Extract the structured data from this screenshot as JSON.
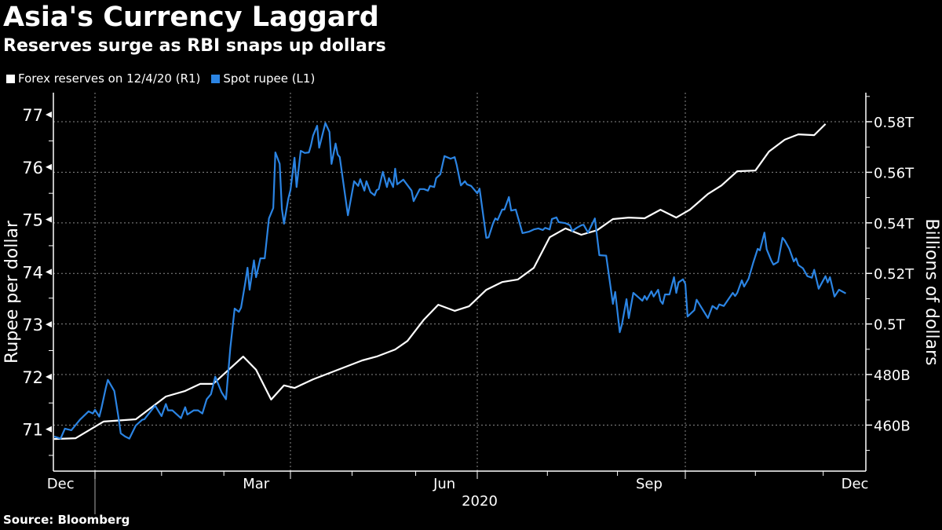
{
  "header": {
    "title": "Asia's Currency Laggard",
    "subtitle": "Reserves surge as RBI snaps up dollars"
  },
  "legend": [
    {
      "label": "Forex reserves on 12/4/20 (R1)",
      "color": "#ffffff"
    },
    {
      "label": "Spot rupee (L1)",
      "color": "#2b84e3"
    }
  ],
  "source": "Source: Bloomberg",
  "chart_data": {
    "type": "line",
    "title": "Asia's Currency Laggard",
    "subtitle": "Reserves surge as RBI snaps up dollars",
    "grid": true,
    "legend_position": "top-left",
    "x_axis": {
      "type": "date",
      "range": [
        "2019-12-12",
        "2020-12-15"
      ],
      "tick_labels": [
        {
          "label": "Dec",
          "date": "2019-12-16"
        },
        {
          "label": "Mar",
          "date": "2020-03-16"
        },
        {
          "label": "Jun",
          "date": "2020-06-15"
        },
        {
          "label": "Sep",
          "date": "2020-09-15"
        },
        {
          "label": "Dec",
          "date": "2020-12-15"
        }
      ],
      "year_label": "2020"
    },
    "y_left": {
      "label": "Rupee per dollar",
      "range": [
        70.2,
        77.42
      ],
      "ticks": [
        71,
        72,
        73,
        74,
        75,
        76,
        77
      ],
      "tick_labels": [
        "71",
        "72",
        "73",
        "74",
        "75",
        "76",
        "77"
      ]
    },
    "y_right": {
      "label": "Billions of dollars",
      "range": [
        441.8,
        591.5
      ],
      "ticks": [
        460,
        480,
        500,
        520,
        540,
        560,
        580
      ],
      "tick_labels": [
        "460B",
        "480B",
        "0.5T",
        "0.52T",
        "0.54T",
        "0.56T",
        "0.58T"
      ]
    },
    "series": [
      {
        "name": "Forex reserves on 12/4/20 (R1)",
        "axis": "right",
        "color": "#ffffff",
        "dates": [
          "2019-12-13",
          "2019-12-23",
          "2020-01-05",
          "2020-01-20",
          "2020-02-03",
          "2020-02-12",
          "2020-02-19",
          "2020-02-25",
          "2020-03-10",
          "2020-03-16",
          "2020-03-23",
          "2020-03-29",
          "2020-04-03",
          "2020-04-08",
          "2020-04-12",
          "2020-05-06",
          "2020-05-13",
          "2020-05-22",
          "2020-05-28",
          "2020-06-05",
          "2020-06-12",
          "2020-06-20",
          "2020-06-27",
          "2020-07-05",
          "2020-07-12",
          "2020-07-19",
          "2020-07-26",
          "2020-08-02",
          "2020-08-09",
          "2020-08-16",
          "2020-08-23",
          "2020-08-30",
          "2020-09-06",
          "2020-09-13",
          "2020-09-20",
          "2020-09-27",
          "2020-10-03",
          "2020-10-11",
          "2020-10-17",
          "2020-10-24",
          "2020-11-01",
          "2020-11-07",
          "2020-11-14",
          "2020-11-20",
          "2020-11-27",
          "2020-12-02"
        ],
        "values": [
          454.5,
          454.8,
          461.4,
          462.3,
          471.3,
          473.5,
          476.3,
          476.3,
          487.1,
          481.9,
          470.1,
          475.7,
          474.7,
          476.6,
          478.1,
          485.6,
          487.1,
          489.9,
          493.3,
          501.7,
          507.6,
          505.2,
          507.0,
          513.5,
          516.6,
          517.6,
          522.2,
          534.3,
          537.8,
          535.3,
          537.1,
          541.5,
          542.1,
          541.8,
          545.2,
          542.1,
          545.2,
          551.4,
          554.8,
          560.4,
          560.7,
          568.2,
          572.9,
          575.0,
          574.7,
          579.1
        ]
      },
      {
        "name": "Spot rupee (L1)",
        "axis": "left",
        "color": "#2b84e3",
        "dates": [
          "2019-12-13",
          "2019-12-16",
          "2019-12-18",
          "2019-12-21",
          "2019-12-25",
          "2019-12-29",
          "2019-12-31",
          "2020-01-01",
          "2020-01-03",
          "2020-01-04",
          "2020-01-06",
          "2020-01-07",
          "2020-01-10",
          "2020-01-12",
          "2020-01-13",
          "2020-01-15",
          "2020-01-17",
          "2020-01-20",
          "2020-01-23",
          "2020-01-24",
          "2020-01-29",
          "2020-02-01",
          "2020-02-03",
          "2020-02-04",
          "2020-02-06",
          "2020-02-10",
          "2020-02-12",
          "2020-02-13",
          "2020-02-16",
          "2020-02-18",
          "2020-02-20",
          "2020-02-22",
          "2020-02-24",
          "2020-02-26",
          "2020-02-29",
          "2020-03-02",
          "2020-03-04",
          "2020-03-06",
          "2020-03-08",
          "2020-03-09",
          "2020-03-11",
          "2020-03-12",
          "2020-03-13",
          "2020-03-15",
          "2020-03-16",
          "2020-03-18",
          "2020-03-20",
          "2020-03-22",
          "2020-03-24",
          "2020-03-25",
          "2020-03-27",
          "2020-03-28",
          "2020-03-29",
          "2020-03-31",
          "2020-04-01",
          "2020-04-03",
          "2020-04-04",
          "2020-04-06",
          "2020-04-08",
          "2020-04-10",
          "2020-04-11",
          "2020-04-12",
          "2020-04-14",
          "2020-04-15",
          "2020-04-18",
          "2020-04-20",
          "2020-04-21",
          "2020-04-23",
          "2020-04-24",
          "2020-04-25",
          "2020-04-29",
          "2020-05-02",
          "2020-05-04",
          "2020-05-05",
          "2020-05-07",
          "2020-05-08",
          "2020-05-10",
          "2020-05-12",
          "2020-05-13",
          "2020-05-14",
          "2020-05-16",
          "2020-05-18",
          "2020-05-19",
          "2020-05-21",
          "2020-05-22",
          "2020-05-23",
          "2020-05-26",
          "2020-05-30",
          "2020-05-31",
          "2020-06-03",
          "2020-06-05",
          "2020-06-07",
          "2020-06-08",
          "2020-06-10",
          "2020-06-11",
          "2020-06-13",
          "2020-06-15",
          "2020-06-18",
          "2020-06-20",
          "2020-06-21",
          "2020-06-23",
          "2020-06-25",
          "2020-06-26",
          "2020-06-28",
          "2020-07-01",
          "2020-07-02",
          "2020-07-05",
          "2020-07-06",
          "2020-07-08",
          "2020-07-09",
          "2020-07-10",
          "2020-07-12",
          "2020-07-13",
          "2020-07-15",
          "2020-07-16",
          "2020-07-18",
          "2020-07-21",
          "2020-07-24",
          "2020-07-26",
          "2020-07-28",
          "2020-07-30",
          "2020-07-31",
          "2020-08-02",
          "2020-08-03",
          "2020-08-05",
          "2020-08-06",
          "2020-08-09",
          "2020-08-11",
          "2020-08-12",
          "2020-08-14",
          "2020-08-16",
          "2020-08-17",
          "2020-08-19",
          "2020-08-22",
          "2020-08-24",
          "2020-08-27",
          "2020-08-30",
          "2020-08-31",
          "2020-09-02",
          "2020-09-03",
          "2020-09-05",
          "2020-09-06",
          "2020-09-08",
          "2020-09-12",
          "2020-09-13",
          "2020-09-14",
          "2020-09-16",
          "2020-09-17",
          "2020-09-19",
          "2020-09-20",
          "2020-09-21",
          "2020-09-22",
          "2020-09-24",
          "2020-09-26",
          "2020-09-27",
          "2020-09-28",
          "2020-09-30",
          "2020-10-01",
          "2020-10-02",
          "2020-10-05",
          "2020-10-06",
          "2020-10-11",
          "2020-10-13",
          "2020-10-15",
          "2020-10-16",
          "2020-10-18",
          "2020-10-22",
          "2020-10-23",
          "2020-10-24",
          "2020-10-26",
          "2020-10-27",
          "2020-10-29",
          "2020-10-31",
          "2020-11-02",
          "2020-11-03",
          "2020-11-05",
          "2020-11-06",
          "2020-11-08",
          "2020-11-09",
          "2020-11-11",
          "2020-11-13",
          "2020-11-14",
          "2020-11-16",
          "2020-11-18",
          "2020-11-19",
          "2020-11-20",
          "2020-11-22",
          "2020-11-24",
          "2020-11-26",
          "2020-11-27",
          "2020-11-29",
          "2020-12-02",
          "2020-12-03",
          "2020-12-04",
          "2020-12-06",
          "2020-12-08",
          "2020-12-11"
        ],
        "values": [
          70.86,
          70.82,
          71.01,
          70.98,
          71.18,
          71.34,
          71.3,
          71.37,
          71.24,
          71.4,
          71.78,
          71.94,
          71.73,
          71.21,
          70.92,
          70.86,
          70.82,
          71.07,
          71.18,
          71.19,
          71.45,
          71.25,
          71.48,
          71.36,
          71.36,
          71.21,
          71.42,
          71.28,
          71.36,
          71.36,
          71.3,
          71.57,
          71.67,
          72.0,
          71.7,
          71.57,
          72.55,
          73.3,
          73.24,
          73.32,
          73.8,
          74.08,
          73.66,
          74.22,
          73.9,
          74.26,
          74.26,
          75.02,
          75.22,
          76.28,
          76.06,
          75.2,
          74.92,
          75.4,
          75.56,
          76.18,
          75.62,
          76.31,
          76.27,
          76.28,
          76.42,
          76.6,
          76.79,
          76.37,
          76.84,
          76.67,
          76.06,
          76.45,
          76.24,
          76.19,
          75.08,
          75.73,
          75.64,
          75.77,
          75.55,
          75.73,
          75.52,
          75.46,
          75.56,
          75.58,
          75.91,
          75.62,
          75.79,
          75.62,
          75.97,
          75.67,
          75.76,
          75.55,
          75.35,
          75.58,
          75.58,
          75.55,
          75.64,
          75.62,
          75.79,
          75.86,
          76.21,
          76.16,
          76.19,
          76.04,
          75.65,
          75.73,
          75.67,
          75.64,
          75.5,
          75.59,
          74.65,
          74.66,
          74.93,
          75.02,
          74.99,
          75.19,
          75.19,
          75.43,
          75.17,
          75.19,
          74.74,
          74.77,
          74.81,
          74.83,
          74.8,
          74.84,
          74.81,
          75.01,
          75.04,
          74.95,
          74.93,
          74.89,
          74.78,
          74.84,
          74.89,
          74.9,
          74.75,
          75.02,
          74.32,
          74.31,
          73.39,
          73.62,
          72.85,
          73.0,
          73.48,
          73.12,
          73.6,
          73.45,
          73.54,
          73.47,
          73.63,
          73.53,
          73.66,
          73.45,
          73.39,
          73.57,
          73.57,
          73.9,
          73.6,
          73.8,
          73.86,
          73.77,
          73.15,
          73.27,
          73.47,
          73.12,
          73.35,
          73.29,
          73.38,
          73.35,
          73.6,
          73.54,
          73.6,
          73.84,
          73.72,
          73.87,
          74.17,
          74.44,
          74.41,
          74.75,
          74.43,
          74.22,
          74.14,
          74.19,
          74.65,
          74.6,
          74.44,
          74.2,
          74.26,
          74.13,
          74.07,
          73.92,
          73.89,
          74.04,
          73.68,
          73.92,
          73.8,
          73.9,
          73.53,
          73.66,
          73.59
        ]
      }
    ]
  }
}
